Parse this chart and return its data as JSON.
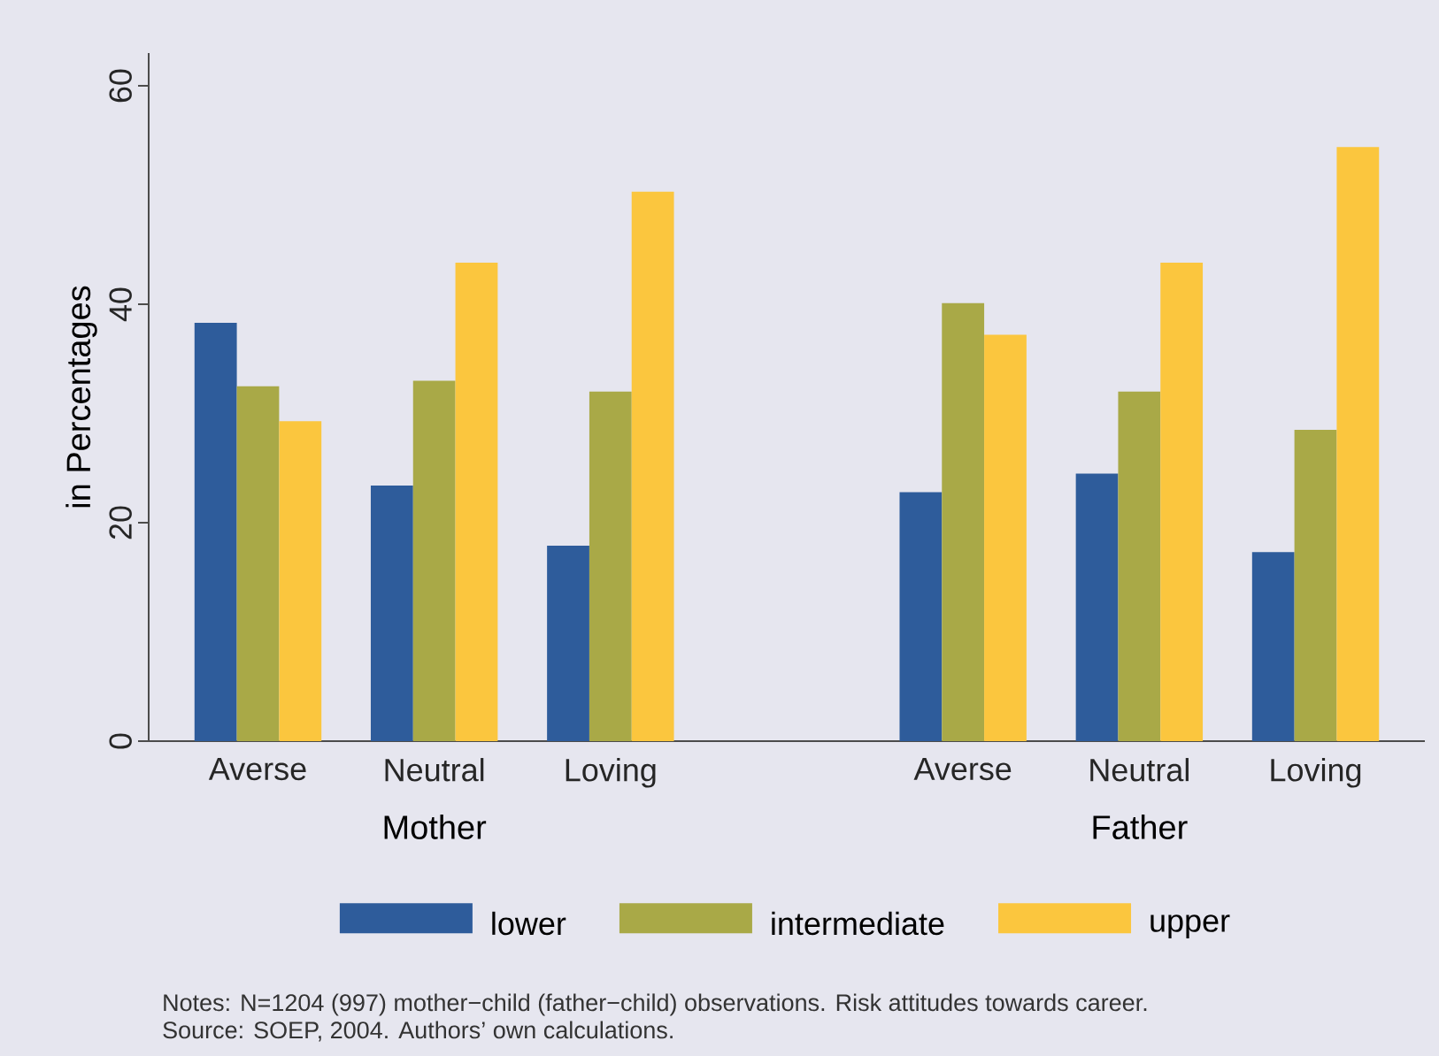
{
  "chart_data": {
    "type": "bar",
    "ylabel": "in Percentages",
    "categories": [
      "Averse",
      "Neutral",
      "Loving",
      null,
      "Averse",
      "Neutral",
      "Loving"
    ],
    "series": [
      {
        "name": "lower",
        "color": "#2e5c9b",
        "values": [
          38.3,
          23.4,
          17.9,
          null,
          22.8,
          24.5,
          17.3
        ]
      },
      {
        "name": "intermediate",
        "color": "#a9a947",
        "values": [
          32.5,
          33.0,
          32.0,
          null,
          40.1,
          32.0,
          28.5
        ]
      },
      {
        "name": "upper",
        "color": "#fbc63e",
        "values": [
          29.3,
          43.8,
          50.3,
          null,
          37.2,
          43.8,
          54.4
        ]
      }
    ],
    "ylim": [
      0,
      63
    ],
    "yticks": [
      0,
      20,
      40,
      60
    ],
    "grid": false,
    "legend": "bottom",
    "annotations": [
      "Mother",
      "Father",
      "Notes: N=1204 (997) mother−child (father−child) observations. Risk attitudes towards career.",
      "Source: SOEP, 2004. Authors’ own calculations."
    ]
  }
}
